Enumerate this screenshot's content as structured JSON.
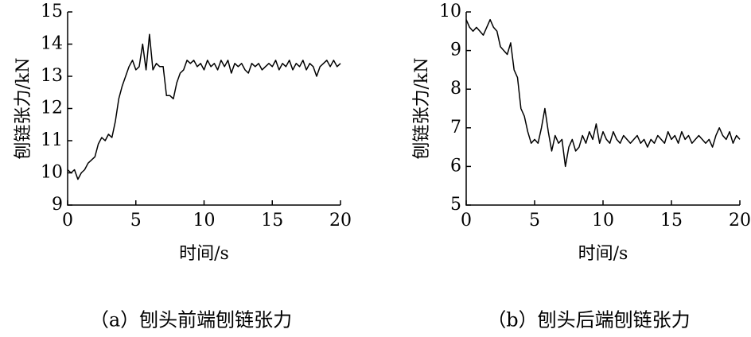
{
  "chart_data": [
    {
      "type": "line",
      "title": "（a）刨头前端刨链张力",
      "x_label": "时间/s",
      "y_label": "刨链张力/kN",
      "xlim": [
        0,
        20
      ],
      "ylim": [
        9,
        15
      ],
      "xticks": [
        0,
        5,
        10,
        15,
        20
      ],
      "yticks": [
        9,
        10,
        11,
        12,
        13,
        14,
        15
      ],
      "x": [
        0,
        0.25,
        0.5,
        0.75,
        1,
        1.25,
        1.5,
        1.75,
        2,
        2.25,
        2.5,
        2.75,
        3,
        3.25,
        3.5,
        3.75,
        4,
        4.25,
        4.5,
        4.75,
        5,
        5.25,
        5.5,
        5.75,
        6,
        6.25,
        6.5,
        6.75,
        7,
        7.25,
        7.5,
        7.75,
        8,
        8.25,
        8.5,
        8.75,
        9,
        9.25,
        9.5,
        9.75,
        10,
        10.25,
        10.5,
        10.75,
        11,
        11.25,
        11.5,
        11.75,
        12,
        12.25,
        12.5,
        12.75,
        13,
        13.25,
        13.5,
        13.75,
        14,
        14.25,
        14.5,
        14.75,
        15,
        15.25,
        15.5,
        15.75,
        16,
        16.25,
        16.5,
        16.75,
        17,
        17.25,
        17.5,
        17.75,
        18,
        18.25,
        18.5,
        18.75,
        19,
        19.25,
        19.5,
        19.75,
        20
      ],
      "series": [
        {
          "color": "#000000",
          "values": [
            10.1,
            10.0,
            10.1,
            9.8,
            10.0,
            10.1,
            10.3,
            10.4,
            10.5,
            10.9,
            11.1,
            11.0,
            11.2,
            11.1,
            11.6,
            12.3,
            12.7,
            13.0,
            13.3,
            13.5,
            13.2,
            13.3,
            14.0,
            13.2,
            14.3,
            13.2,
            13.4,
            13.3,
            13.3,
            12.4,
            12.4,
            12.3,
            12.8,
            13.1,
            13.2,
            13.5,
            13.4,
            13.5,
            13.3,
            13.4,
            13.2,
            13.5,
            13.3,
            13.4,
            13.2,
            13.5,
            13.3,
            13.5,
            13.1,
            13.4,
            13.3,
            13.4,
            13.2,
            13.1,
            13.4,
            13.3,
            13.4,
            13.2,
            13.3,
            13.4,
            13.3,
            13.5,
            13.2,
            13.4,
            13.3,
            13.5,
            13.2,
            13.4,
            13.3,
            13.5,
            13.2,
            13.4,
            13.3,
            13.0,
            13.3,
            13.4,
            13.5,
            13.3,
            13.5,
            13.3,
            13.4
          ]
        }
      ]
    },
    {
      "type": "line",
      "title": "（b）刨头后端刨链张力",
      "x_label": "时间/s",
      "y_label": "刨链张力/kN",
      "xlim": [
        0,
        20
      ],
      "ylim": [
        5,
        10
      ],
      "xticks": [
        0,
        5,
        10,
        15,
        20
      ],
      "yticks": [
        5,
        6,
        7,
        8,
        9,
        10
      ],
      "x": [
        0,
        0.25,
        0.5,
        0.75,
        1,
        1.25,
        1.5,
        1.75,
        2,
        2.25,
        2.5,
        2.75,
        3,
        3.25,
        3.5,
        3.75,
        4,
        4.25,
        4.5,
        4.75,
        5,
        5.25,
        5.5,
        5.75,
        6,
        6.25,
        6.5,
        6.75,
        7,
        7.25,
        7.5,
        7.75,
        8,
        8.25,
        8.5,
        8.75,
        9,
        9.25,
        9.5,
        9.75,
        10,
        10.25,
        10.5,
        10.75,
        11,
        11.25,
        11.5,
        11.75,
        12,
        12.25,
        12.5,
        12.75,
        13,
        13.25,
        13.5,
        13.75,
        14,
        14.25,
        14.5,
        14.75,
        15,
        15.25,
        15.5,
        15.75,
        16,
        16.25,
        16.5,
        16.75,
        17,
        17.25,
        17.5,
        17.75,
        18,
        18.25,
        18.5,
        18.75,
        19,
        19.25,
        19.5,
        19.75,
        20
      ],
      "series": [
        {
          "color": "#000000",
          "values": [
            9.8,
            9.6,
            9.5,
            9.6,
            9.5,
            9.4,
            9.6,
            9.8,
            9.6,
            9.5,
            9.1,
            9.0,
            8.9,
            9.2,
            8.5,
            8.3,
            7.5,
            7.3,
            6.9,
            6.6,
            6.7,
            6.6,
            7.0,
            7.5,
            6.9,
            6.4,
            6.8,
            6.6,
            6.7,
            6.0,
            6.5,
            6.7,
            6.4,
            6.5,
            6.8,
            6.6,
            6.9,
            6.7,
            7.1,
            6.6,
            6.9,
            6.7,
            6.6,
            6.9,
            6.7,
            6.6,
            6.8,
            6.7,
            6.6,
            6.7,
            6.8,
            6.6,
            6.7,
            6.5,
            6.7,
            6.6,
            6.8,
            6.7,
            6.6,
            6.9,
            6.7,
            6.8,
            6.6,
            6.9,
            6.7,
            6.8,
            6.6,
            6.7,
            6.8,
            6.7,
            6.6,
            6.7,
            6.5,
            6.8,
            7.0,
            6.8,
            6.7,
            6.9,
            6.6,
            6.8,
            6.7
          ]
        }
      ]
    }
  ]
}
